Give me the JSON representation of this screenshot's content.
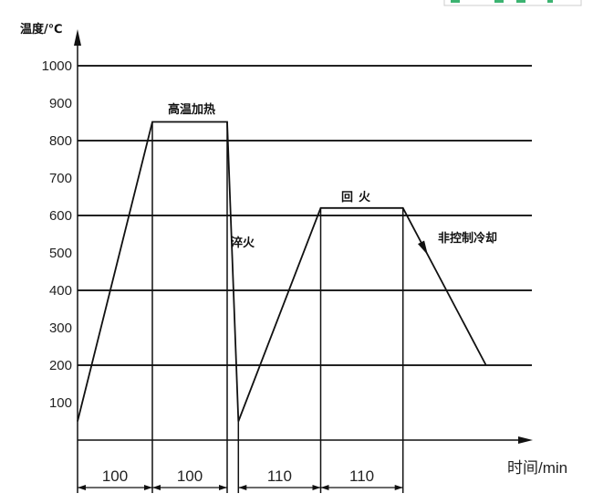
{
  "chart_data": {
    "type": "line",
    "ylabel": "温度/℃",
    "xlabel": "时间/min",
    "ylim": [
      0,
      1000
    ],
    "yticks": [
      100,
      200,
      300,
      400,
      500,
      600,
      700,
      800,
      900,
      1000
    ],
    "grid_lines_y": [
      200,
      400,
      600,
      800,
      1000
    ],
    "series": [
      {
        "x": [
          0,
          100,
          200,
          215,
          325,
          435,
          546
        ],
        "y": [
          50,
          850,
          850,
          50,
          620,
          620,
          200
        ]
      }
    ],
    "annotations": [
      "高温加热",
      "淬火",
      "回火",
      "非控制冷却"
    ],
    "durations": [
      {
        "from": 0,
        "to": 100,
        "label": "100"
      },
      {
        "from": 100,
        "to": 200,
        "label": "100"
      },
      {
        "from": 215,
        "to": 325,
        "label": "110"
      },
      {
        "from": 325,
        "to": 435,
        "label": "110"
      }
    ]
  }
}
